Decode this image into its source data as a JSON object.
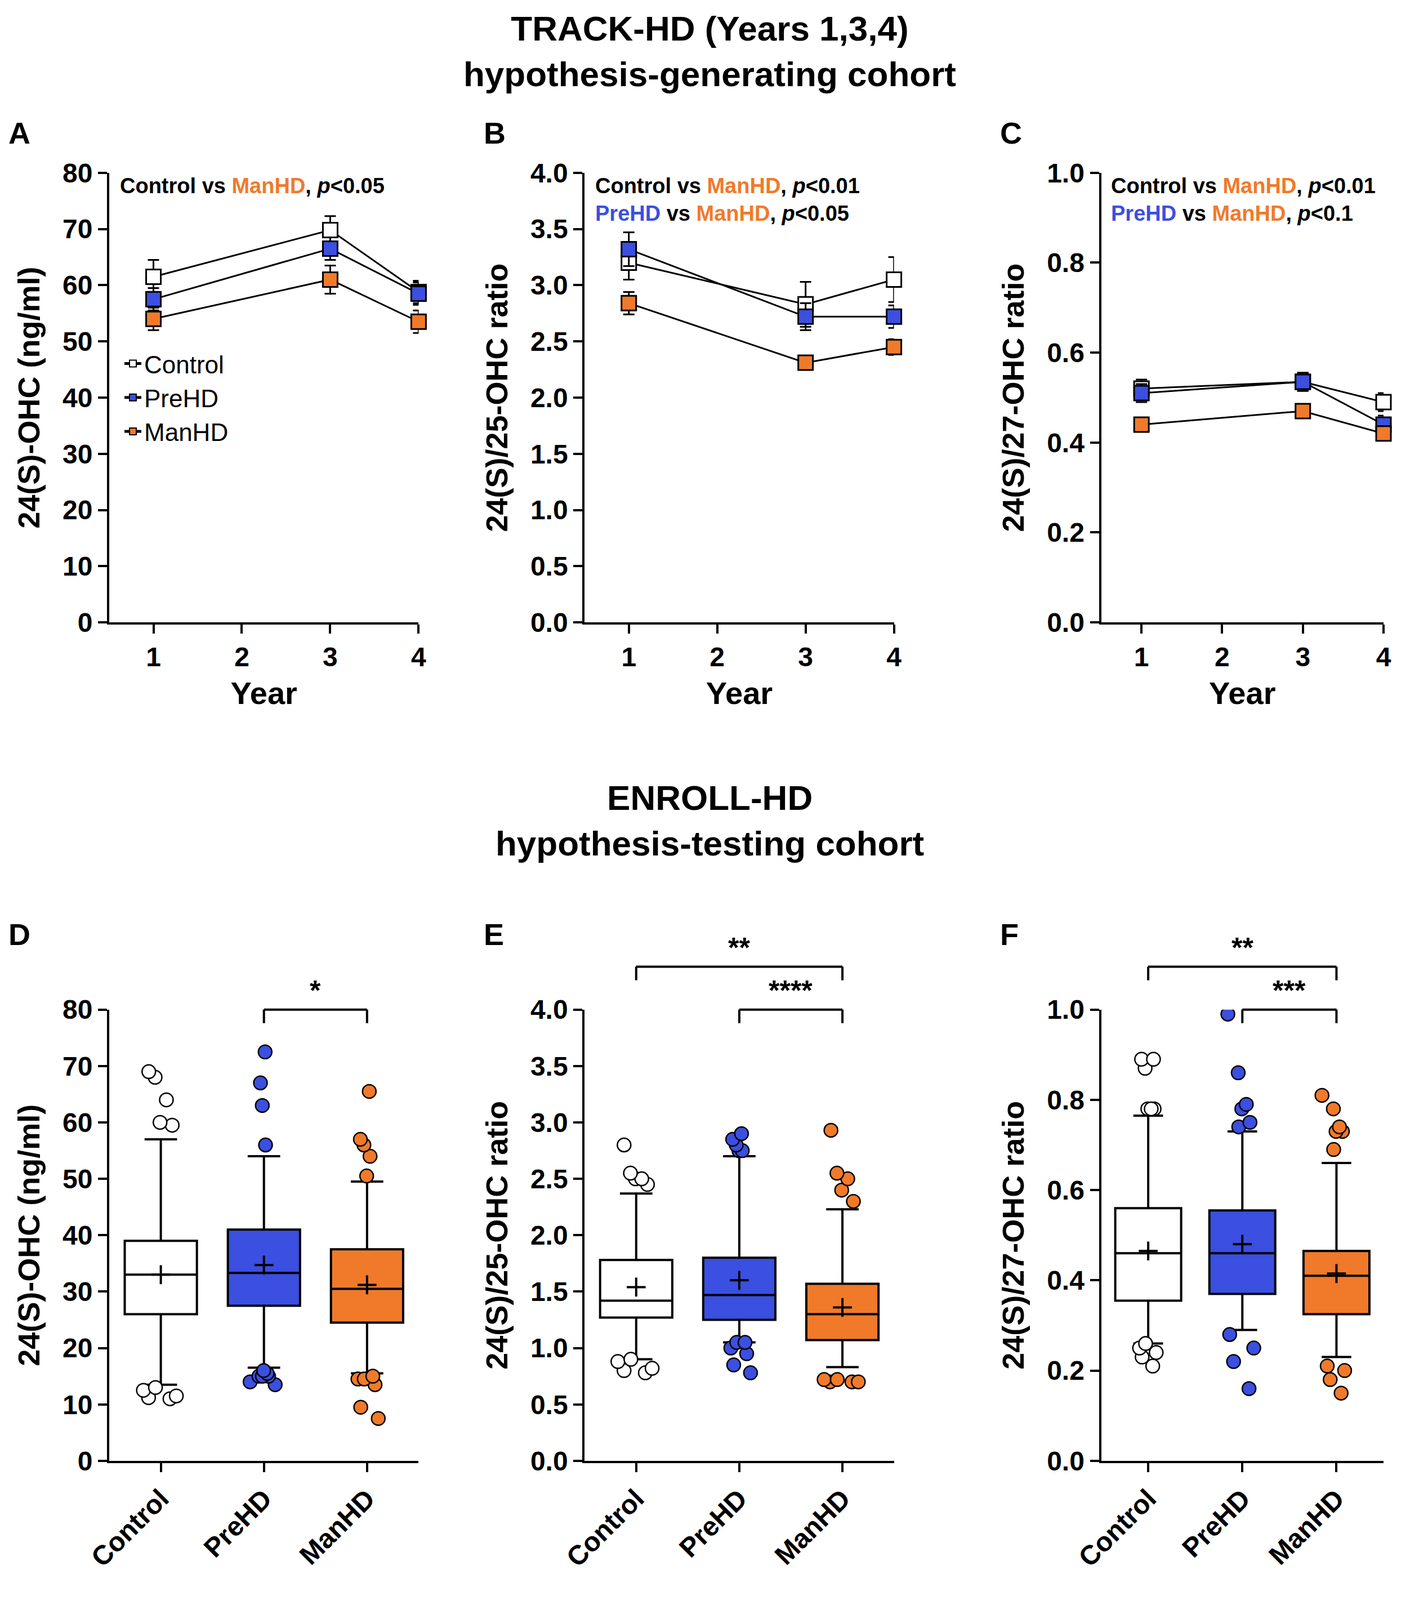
{
  "headings": [
    [
      "TRACK-HD (Years 1,3,4)",
      "hypothesis-generating cohort"
    ],
    [
      "ENROLL-HD",
      "hypothesis-testing cohort"
    ]
  ],
  "chart_data": [
    {
      "type": "line",
      "title": "A",
      "x": [
        1,
        3,
        4
      ],
      "xlabel": "Year",
      "ylabel": "24(S)-OHC (ng/ml)",
      "xlim": [
        0.5,
        4
      ],
      "xticks": [
        1,
        2,
        3,
        4
      ],
      "ylim": [
        0,
        80
      ],
      "yticks": [
        0,
        10,
        20,
        30,
        40,
        50,
        60,
        70,
        80
      ],
      "grid": false,
      "legend": "left",
      "annotations": [
        "Control vs ManHD, p<0.05"
      ],
      "series": [
        {
          "name": "Control",
          "color": "#ffffff",
          "marker": "square",
          "line_style": "solid",
          "values": [
            61.5,
            69.8,
            58.8
          ],
          "errors": [
            3,
            2.5,
            2
          ]
        },
        {
          "name": "PreHD",
          "color": "#3b4fe0",
          "marker": "square",
          "line_style": "solid",
          "values": [
            57.5,
            66.5,
            58.5
          ],
          "errors": [
            2,
            2,
            2
          ]
        },
        {
          "name": "ManHD",
          "color": "#f07a2a",
          "marker": "square",
          "line_style": "solid",
          "values": [
            54,
            61,
            53.5
          ],
          "errors": [
            2,
            2.5,
            2
          ]
        }
      ]
    },
    {
      "type": "line",
      "title": "B",
      "x": [
        1,
        3,
        4
      ],
      "xlabel": "Year",
      "ylabel": "24(S)/25-OHC ratio",
      "xlim": [
        0.5,
        4
      ],
      "xticks": [
        1,
        2,
        3,
        4
      ],
      "ylim": [
        0,
        4
      ],
      "yticks": [
        {
          "value": 0,
          "label": "0.0"
        },
        0.5,
        {
          "value": 1,
          "label": "1.0"
        },
        1.5,
        {
          "value": 2,
          "label": "2.0"
        },
        2.5,
        {
          "value": 3,
          "label": "3.0"
        },
        3.5,
        {
          "value": 4,
          "label": "4.0"
        }
      ],
      "grid": false,
      "annotations": [
        "Control vs ManHD, p<0.01",
        "PreHD vs ManHD, p<0.05"
      ],
      "series": [
        {
          "name": "Control",
          "color": "#ffffff",
          "marker": "square",
          "line_style": "solid",
          "values": [
            3.2,
            2.83,
            3.05
          ],
          "errors": [
            0.15,
            0.2,
            0.2
          ]
        },
        {
          "name": "PreHD",
          "color": "#3b4fe0",
          "marker": "square",
          "line_style": "solid",
          "values": [
            3.32,
            2.72,
            2.72
          ],
          "errors": [
            0.15,
            0.12,
            0.1
          ]
        },
        {
          "name": "ManHD",
          "color": "#f07a2a",
          "marker": "square",
          "line_style": "solid",
          "values": [
            2.84,
            2.31,
            2.45
          ],
          "errors": [
            0.1,
            0.06,
            0.07
          ]
        }
      ]
    },
    {
      "type": "line",
      "title": "C",
      "x": [
        1,
        3,
        4
      ],
      "xlabel": "Year",
      "ylabel": "24(S)/27-OHC ratio",
      "xlim": [
        0.5,
        4
      ],
      "xticks": [
        1,
        2,
        3,
        4
      ],
      "ylim": [
        0,
        1
      ],
      "yticks": [
        {
          "value": 0,
          "label": "0.0"
        },
        0.2,
        0.4,
        0.6,
        0.8,
        {
          "value": 1,
          "label": "1.0"
        }
      ],
      "grid": false,
      "annotations": [
        "Control vs ManHD, p<0.01",
        "PreHD vs ManHD, p<0.1"
      ],
      "series": [
        {
          "name": "Control",
          "color": "#ffffff",
          "marker": "square",
          "line_style": "solid",
          "values": [
            0.52,
            0.535,
            0.49
          ],
          "errors": [
            0.02,
            0.02,
            0.02
          ]
        },
        {
          "name": "PreHD",
          "color": "#3b4fe0",
          "marker": "square",
          "line_style": "solid",
          "values": [
            0.51,
            0.535,
            0.44
          ],
          "errors": [
            0.02,
            0.02,
            0.02
          ]
        },
        {
          "name": "ManHD",
          "color": "#f07a2a",
          "marker": "square",
          "line_style": "solid",
          "values": [
            0.44,
            0.47,
            0.42
          ],
          "errors": [
            0.01,
            0.01,
            0.01
          ]
        }
      ]
    },
    {
      "type": "box",
      "title": "D",
      "ylabel": "24(S)-OHC (ng/ml)",
      "ylim": [
        0,
        80
      ],
      "yticks": [
        0,
        10,
        20,
        30,
        40,
        50,
        60,
        70,
        80
      ],
      "grid": false,
      "marker": "circle",
      "categories": [
        "Control",
        "PreHD",
        "ManHD"
      ],
      "colors": [
        "#ffffff",
        "#3b4fe0",
        "#f07a2a"
      ],
      "boxes": [
        {
          "whisker_low": 13.5,
          "q1": 26,
          "median": 33,
          "q3": 39,
          "whisker_high": 57,
          "mean": 33,
          "outliers": [
            11,
            11.2,
            11.5,
            12.5,
            13,
            59.5,
            60,
            64,
            68,
            69
          ]
        },
        {
          "whisker_low": 16.5,
          "q1": 27.5,
          "median": 33.3,
          "q3": 41,
          "whisker_high": 54,
          "mean": 34.7,
          "outliers": [
            13.5,
            14,
            15,
            15,
            15,
            15.5,
            16,
            56,
            63,
            67,
            72.5
          ]
        },
        {
          "whisker_low": 15.5,
          "q1": 24.5,
          "median": 30.5,
          "q3": 37.5,
          "whisker_high": 49.5,
          "mean": 31.2,
          "outliers": [
            7.5,
            9.5,
            13.5,
            14.5,
            14.5,
            15,
            50.5,
            54,
            56,
            57,
            65.5
          ]
        }
      ],
      "comparisons": [
        {
          "groups": [
            "PreHD",
            "ManHD"
          ],
          "label": "*"
        }
      ]
    },
    {
      "type": "box",
      "title": "E",
      "ylabel": "24(S)/25-OHC ratio",
      "ylim": [
        0,
        4
      ],
      "yticks": [
        {
          "value": 0,
          "label": "0.0"
        },
        0.5,
        {
          "value": 1,
          "label": "1.0"
        },
        1.5,
        {
          "value": 2,
          "label": "2.0"
        },
        2.5,
        {
          "value": 3,
          "label": "3.0"
        },
        3.5,
        {
          "value": 4,
          "label": "4.0"
        }
      ],
      "grid": false,
      "marker": "circle",
      "categories": [
        "Control",
        "PreHD",
        "ManHD"
      ],
      "colors": [
        "#ffffff",
        "#3b4fe0",
        "#f07a2a"
      ],
      "boxes": [
        {
          "whisker_low": 0.9,
          "q1": 1.27,
          "median": 1.42,
          "q3": 1.78,
          "whisker_high": 2.37,
          "mean": 1.54,
          "outliers": [
            0.78,
            0.8,
            0.82,
            0.88,
            0.9,
            2.45,
            2.5,
            2.5,
            2.55,
            2.8
          ]
        },
        {
          "whisker_low": 1.05,
          "q1": 1.25,
          "median": 1.47,
          "q3": 1.8,
          "whisker_high": 2.7,
          "mean": 1.6,
          "outliers": [
            0.78,
            0.85,
            0.95,
            1.0,
            1.05,
            1.05,
            2.75,
            2.75,
            2.8,
            2.85,
            2.9
          ]
        },
        {
          "whisker_low": 0.83,
          "q1": 1.07,
          "median": 1.3,
          "q3": 1.57,
          "whisker_high": 2.23,
          "mean": 1.36,
          "outliers": [
            0.7,
            0.7,
            0.7,
            0.72,
            0.72,
            2.3,
            2.4,
            2.5,
            2.55,
            2.93
          ]
        }
      ],
      "comparisons": [
        {
          "groups": [
            "Control",
            "ManHD"
          ],
          "label": "**"
        },
        {
          "groups": [
            "PreHD",
            "ManHD"
          ],
          "label": "****"
        }
      ]
    },
    {
      "type": "box",
      "title": "F",
      "ylabel": "24(S)/27-OHC ratio",
      "ylim": [
        0,
        1
      ],
      "yticks": [
        {
          "value": 0,
          "label": "0.0"
        },
        0.2,
        0.4,
        0.6,
        0.8,
        {
          "value": 1,
          "label": "1.0"
        }
      ],
      "grid": false,
      "marker": "circle",
      "categories": [
        "Control",
        "PreHD",
        "ManHD"
      ],
      "colors": [
        "#ffffff",
        "#3b4fe0",
        "#f07a2a"
      ],
      "boxes": [
        {
          "whisker_low": 0.26,
          "q1": 0.355,
          "median": 0.46,
          "q3": 0.56,
          "whisker_high": 0.765,
          "mean": 0.465,
          "outliers": [
            0.21,
            0.23,
            0.24,
            0.25,
            0.26,
            0.78,
            0.78,
            0.78,
            0.87,
            0.89,
            0.89
          ]
        },
        {
          "whisker_low": 0.29,
          "q1": 0.37,
          "median": 0.46,
          "q3": 0.555,
          "whisker_high": 0.73,
          "mean": 0.48,
          "outliers": [
            0.16,
            0.22,
            0.25,
            0.28,
            0.74,
            0.75,
            0.78,
            0.79,
            0.86,
            0.99
          ]
        },
        {
          "whisker_low": 0.23,
          "q1": 0.325,
          "median": 0.41,
          "q3": 0.465,
          "whisker_high": 0.66,
          "mean": 0.415,
          "outliers": [
            0.15,
            0.18,
            0.2,
            0.21,
            0.69,
            0.73,
            0.73,
            0.74,
            0.78,
            0.81
          ]
        }
      ],
      "comparisons": [
        {
          "groups": [
            "Control",
            "ManHD"
          ],
          "label": "**"
        },
        {
          "groups": [
            "PreHD",
            "ManHD"
          ],
          "label": "***"
        }
      ]
    }
  ]
}
